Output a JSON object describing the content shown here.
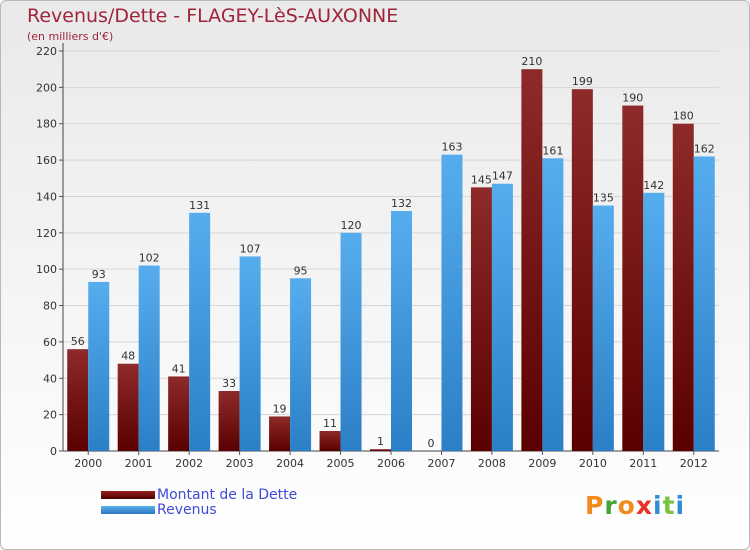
{
  "header": {
    "title": "Revenus/Dette - FLAGEY-LèS-AUXONNE",
    "subtitle": "(en milliers d'€)"
  },
  "colors": {
    "dette": "#6e0b0b",
    "revenus": "#3f95dc",
    "title": "#a0243a",
    "legend_text": "#3f4bd6"
  },
  "legend": {
    "items": [
      {
        "label": "Montant de la Dette",
        "color": "#6e0b0b"
      },
      {
        "label": "Revenus",
        "color": "#3f95dc"
      }
    ]
  },
  "logo": {
    "letters": [
      "P",
      "r",
      "o",
      "x",
      "i",
      "t",
      "i"
    ],
    "colors": [
      "#f08a1c",
      "#44a535",
      "#f08a1c",
      "#e8332a",
      "#2f8dd6",
      "#7cc242",
      "#2f8dd6"
    ]
  },
  "chart_data": {
    "type": "bar",
    "title": "Revenus/Dette - FLAGEY-LèS-AUXONNE",
    "subtitle": "(en milliers d'€)",
    "categories": [
      "2000",
      "2001",
      "2002",
      "2003",
      "2004",
      "2005",
      "2006",
      "2007",
      "2008",
      "2009",
      "2010",
      "2011",
      "2012"
    ],
    "series": [
      {
        "name": "Montant de la Dette",
        "values": [
          56,
          48,
          41,
          33,
          19,
          11,
          1,
          0,
          145,
          210,
          199,
          190,
          180
        ]
      },
      {
        "name": "Revenus",
        "values": [
          93,
          102,
          131,
          107,
          95,
          120,
          132,
          163,
          147,
          161,
          135,
          142,
          162
        ]
      }
    ],
    "yticks": [
      0,
      20,
      40,
      60,
      80,
      100,
      120,
      140,
      160,
      180,
      200,
      220
    ],
    "ylim": [
      0,
      220
    ],
    "grid": true,
    "legend_position": "bottom-left"
  }
}
